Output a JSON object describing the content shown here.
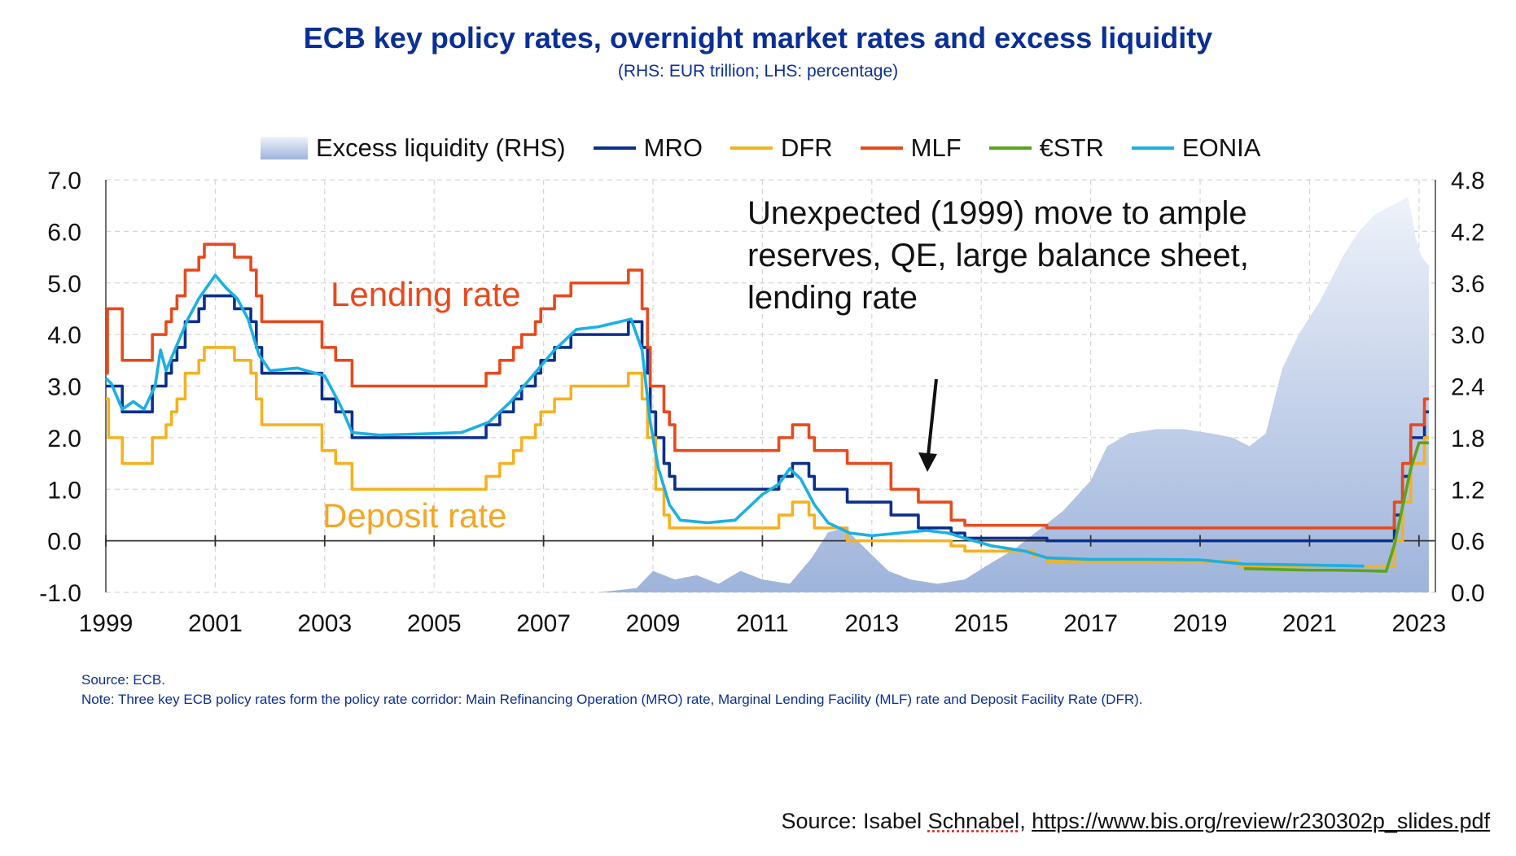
{
  "title": "ECB key policy rates, overnight market rates and excess liquidity",
  "subtitle": "(RHS: EUR trillion; LHS: percentage)",
  "legend": [
    {
      "label": "Excess liquidity (RHS)",
      "kind": "area"
    },
    {
      "label": "MRO",
      "kind": "line",
      "color": "#0b2f8c"
    },
    {
      "label": "DFR",
      "kind": "line",
      "color": "#f5b21e"
    },
    {
      "label": "MLF",
      "kind": "line",
      "color": "#e8491c"
    },
    {
      "label": "€STR",
      "kind": "line",
      "color": "#5aa51c"
    },
    {
      "label": "EONIA",
      "kind": "line",
      "color": "#1ab0e4"
    }
  ],
  "annotations": {
    "lending_rate": "Lending rate",
    "deposit_rate": "Deposit rate",
    "callout_line1": "Unexpected (1999) move to ample",
    "callout_line2": "reserves, QE, large balance sheet,",
    "callout_line3": "lending rate"
  },
  "notes": {
    "source": "Source: ECB.",
    "note": "Note: Three key ECB policy rates form the policy rate corridor: Main Refinancing Operation (MRO) rate, Marginal Lending Facility (MLF) rate and Deposit Facility Rate (DFR)."
  },
  "credit": {
    "prefix": "Source: Isabel ",
    "name": "Schnabel",
    "sep": ", ",
    "url": "https://www.bis.org/review/r230302p_slides.pdf"
  },
  "chart_data": {
    "type": "line",
    "title": "ECB key policy rates, overnight market rates and excess liquidity",
    "x_ticks": [
      "1999",
      "2001",
      "2003",
      "2005",
      "2007",
      "2009",
      "2011",
      "2013",
      "2015",
      "2017",
      "2019",
      "2021",
      "2023"
    ],
    "y_left_ticks": [
      "7.0",
      "6.0",
      "5.0",
      "4.0",
      "3.0",
      "2.0",
      "1.0",
      "0.0",
      "-1.0"
    ],
    "y_right_ticks": [
      "4.8",
      "4.2",
      "3.6",
      "3.0",
      "2.4",
      "1.8",
      "1.2",
      "0.6",
      "0.0"
    ],
    "xlim": [
      1999,
      2023.3
    ],
    "ylim_left": [
      -1.0,
      7.0
    ],
    "ylim_right": [
      0.0,
      4.8
    ],
    "grid": true,
    "series": [
      {
        "name": "MRO",
        "axis": "left",
        "color": "#0b2f8c",
        "step": true,
        "points": [
          [
            1999,
            3.0
          ],
          [
            1999.3,
            2.5
          ],
          [
            1999.85,
            3.0
          ],
          [
            2000.1,
            3.25
          ],
          [
            2000.2,
            3.5
          ],
          [
            2000.3,
            3.75
          ],
          [
            2000.45,
            4.25
          ],
          [
            2000.5,
            4.25
          ],
          [
            2000.7,
            4.5
          ],
          [
            2000.8,
            4.75
          ],
          [
            2001.35,
            4.5
          ],
          [
            2001.65,
            4.25
          ],
          [
            2001.75,
            3.75
          ],
          [
            2001.85,
            3.25
          ],
          [
            2002.95,
            2.75
          ],
          [
            2003.2,
            2.5
          ],
          [
            2003.5,
            2.0
          ],
          [
            2005.95,
            2.25
          ],
          [
            2006.2,
            2.5
          ],
          [
            2006.45,
            2.75
          ],
          [
            2006.6,
            3.0
          ],
          [
            2006.85,
            3.25
          ],
          [
            2006.95,
            3.5
          ],
          [
            2007.2,
            3.75
          ],
          [
            2007.5,
            4.0
          ],
          [
            2008.55,
            4.25
          ],
          [
            2008.8,
            3.75
          ],
          [
            2008.9,
            3.25
          ],
          [
            2008.95,
            2.5
          ],
          [
            2009.05,
            2.0
          ],
          [
            2009.2,
            1.5
          ],
          [
            2009.3,
            1.25
          ],
          [
            2009.4,
            1.0
          ],
          [
            2011.3,
            1.25
          ],
          [
            2011.55,
            1.5
          ],
          [
            2011.85,
            1.25
          ],
          [
            2011.95,
            1.0
          ],
          [
            2012.55,
            0.75
          ],
          [
            2013.35,
            0.5
          ],
          [
            2013.85,
            0.25
          ],
          [
            2014.45,
            0.15
          ],
          [
            2014.7,
            0.05
          ],
          [
            2016.2,
            0.0
          ],
          [
            2022.55,
            0.5
          ],
          [
            2022.7,
            1.25
          ],
          [
            2022.85,
            2.0
          ],
          [
            2023.1,
            2.5
          ],
          [
            2023.18,
            2.5
          ]
        ]
      },
      {
        "name": "DFR",
        "axis": "left",
        "color": "#f5b21e",
        "step": true,
        "points": [
          [
            1999,
            2.75
          ],
          [
            1999.05,
            2.0
          ],
          [
            1999.3,
            1.5
          ],
          [
            1999.85,
            2.0
          ],
          [
            2000.1,
            2.25
          ],
          [
            2000.2,
            2.5
          ],
          [
            2000.3,
            2.75
          ],
          [
            2000.45,
            3.25
          ],
          [
            2000.7,
            3.5
          ],
          [
            2000.8,
            3.75
          ],
          [
            2001.35,
            3.5
          ],
          [
            2001.65,
            3.25
          ],
          [
            2001.75,
            2.75
          ],
          [
            2001.85,
            2.25
          ],
          [
            2002.95,
            1.75
          ],
          [
            2003.2,
            1.5
          ],
          [
            2003.5,
            1.0
          ],
          [
            2005.95,
            1.25
          ],
          [
            2006.2,
            1.5
          ],
          [
            2006.45,
            1.75
          ],
          [
            2006.6,
            2.0
          ],
          [
            2006.85,
            2.25
          ],
          [
            2006.95,
            2.5
          ],
          [
            2007.2,
            2.75
          ],
          [
            2007.5,
            3.0
          ],
          [
            2008.55,
            3.25
          ],
          [
            2008.8,
            2.75
          ],
          [
            2008.9,
            2.0
          ],
          [
            2009.05,
            1.0
          ],
          [
            2009.2,
            0.5
          ],
          [
            2009.3,
            0.25
          ],
          [
            2011.3,
            0.5
          ],
          [
            2011.55,
            0.75
          ],
          [
            2011.85,
            0.5
          ],
          [
            2011.95,
            0.25
          ],
          [
            2012.55,
            0.0
          ],
          [
            2014.45,
            -0.1
          ],
          [
            2014.7,
            -0.2
          ],
          [
            2015.95,
            -0.3
          ],
          [
            2016.2,
            -0.4
          ],
          [
            2019.7,
            -0.5
          ],
          [
            2022.55,
            0.0
          ],
          [
            2022.7,
            0.75
          ],
          [
            2022.85,
            1.5
          ],
          [
            2023.1,
            2.0
          ],
          [
            2023.18,
            2.0
          ]
        ]
      },
      {
        "name": "MLF",
        "axis": "left",
        "color": "#e8491c",
        "step": true,
        "points": [
          [
            1999,
            3.25
          ],
          [
            1999.03,
            4.5
          ],
          [
            1999.3,
            3.5
          ],
          [
            1999.85,
            4.0
          ],
          [
            2000.1,
            4.25
          ],
          [
            2000.2,
            4.5
          ],
          [
            2000.3,
            4.75
          ],
          [
            2000.45,
            5.25
          ],
          [
            2000.7,
            5.5
          ],
          [
            2000.8,
            5.75
          ],
          [
            2001.35,
            5.5
          ],
          [
            2001.65,
            5.25
          ],
          [
            2001.75,
            4.75
          ],
          [
            2001.85,
            4.25
          ],
          [
            2002.95,
            3.75
          ],
          [
            2003.2,
            3.5
          ],
          [
            2003.5,
            3.0
          ],
          [
            2005.95,
            3.25
          ],
          [
            2006.2,
            3.5
          ],
          [
            2006.45,
            3.75
          ],
          [
            2006.6,
            4.0
          ],
          [
            2006.85,
            4.25
          ],
          [
            2006.95,
            4.5
          ],
          [
            2007.2,
            4.75
          ],
          [
            2007.5,
            5.0
          ],
          [
            2008.55,
            5.25
          ],
          [
            2008.8,
            4.5
          ],
          [
            2008.9,
            3.75
          ],
          [
            2008.95,
            3.0
          ],
          [
            2009.2,
            2.5
          ],
          [
            2009.3,
            2.25
          ],
          [
            2009.4,
            1.75
          ],
          [
            2011.3,
            2.0
          ],
          [
            2011.55,
            2.25
          ],
          [
            2011.85,
            2.0
          ],
          [
            2011.95,
            1.75
          ],
          [
            2012.55,
            1.5
          ],
          [
            2013.35,
            1.0
          ],
          [
            2013.85,
            0.75
          ],
          [
            2014.45,
            0.4
          ],
          [
            2014.7,
            0.3
          ],
          [
            2016.2,
            0.25
          ],
          [
            2022.55,
            0.75
          ],
          [
            2022.7,
            1.5
          ],
          [
            2022.85,
            2.25
          ],
          [
            2023.1,
            2.75
          ],
          [
            2023.18,
            2.75
          ]
        ]
      },
      {
        "name": "€STR",
        "axis": "left",
        "color": "#5aa51c",
        "step": false,
        "points": [
          [
            2019.8,
            -0.54
          ],
          [
            2020.2,
            -0.55
          ],
          [
            2020.6,
            -0.56
          ],
          [
            2021.0,
            -0.57
          ],
          [
            2021.5,
            -0.57
          ],
          [
            2022.0,
            -0.58
          ],
          [
            2022.4,
            -0.59
          ],
          [
            2022.55,
            -0.08
          ],
          [
            2022.7,
            0.66
          ],
          [
            2022.85,
            1.4
          ],
          [
            2023.0,
            1.9
          ],
          [
            2023.18,
            1.9
          ]
        ]
      },
      {
        "name": "EONIA",
        "axis": "left",
        "color": "#1ab0e4",
        "step": false,
        "points": [
          [
            1999,
            3.15
          ],
          [
            1999.1,
            3.05
          ],
          [
            1999.3,
            2.55
          ],
          [
            1999.5,
            2.7
          ],
          [
            1999.7,
            2.55
          ],
          [
            1999.9,
            3.0
          ],
          [
            2000.0,
            3.7
          ],
          [
            2000.1,
            3.3
          ],
          [
            2000.3,
            3.8
          ],
          [
            2000.5,
            4.3
          ],
          [
            2000.7,
            4.7
          ],
          [
            2000.9,
            5.0
          ],
          [
            2001.0,
            5.15
          ],
          [
            2001.2,
            4.9
          ],
          [
            2001.4,
            4.7
          ],
          [
            2001.6,
            4.3
          ],
          [
            2001.8,
            3.6
          ],
          [
            2002.0,
            3.3
          ],
          [
            2002.5,
            3.35
          ],
          [
            2003.0,
            3.2
          ],
          [
            2003.3,
            2.6
          ],
          [
            2003.5,
            2.1
          ],
          [
            2004.0,
            2.05
          ],
          [
            2005.0,
            2.08
          ],
          [
            2005.5,
            2.1
          ],
          [
            2006.0,
            2.3
          ],
          [
            2006.4,
            2.7
          ],
          [
            2006.8,
            3.2
          ],
          [
            2007.2,
            3.7
          ],
          [
            2007.6,
            4.1
          ],
          [
            2008.0,
            4.15
          ],
          [
            2008.6,
            4.3
          ],
          [
            2008.8,
            3.7
          ],
          [
            2008.95,
            2.3
          ],
          [
            2009.1,
            1.4
          ],
          [
            2009.3,
            0.7
          ],
          [
            2009.5,
            0.4
          ],
          [
            2010.0,
            0.35
          ],
          [
            2010.5,
            0.4
          ],
          [
            2011.0,
            0.9
          ],
          [
            2011.3,
            1.1
          ],
          [
            2011.5,
            1.4
          ],
          [
            2011.7,
            1.2
          ],
          [
            2011.95,
            0.7
          ],
          [
            2012.2,
            0.35
          ],
          [
            2012.6,
            0.15
          ],
          [
            2013.0,
            0.1
          ],
          [
            2013.5,
            0.15
          ],
          [
            2014.0,
            0.2
          ],
          [
            2014.4,
            0.15
          ],
          [
            2014.7,
            0.05
          ],
          [
            2015.2,
            -0.1
          ],
          [
            2015.8,
            -0.2
          ],
          [
            2016.2,
            -0.33
          ],
          [
            2017.0,
            -0.36
          ],
          [
            2018.0,
            -0.36
          ],
          [
            2019.0,
            -0.37
          ],
          [
            2019.8,
            -0.45
          ],
          [
            2020.5,
            -0.46
          ],
          [
            2021.5,
            -0.48
          ],
          [
            2022.0,
            -0.49
          ]
        ]
      },
      {
        "name": "Excess liquidity (RHS)",
        "axis": "right",
        "kind": "area",
        "step": false,
        "points": [
          [
            1999,
            0.0
          ],
          [
            2008.0,
            0.0
          ],
          [
            2008.7,
            0.05
          ],
          [
            2009.0,
            0.25
          ],
          [
            2009.4,
            0.15
          ],
          [
            2009.8,
            0.2
          ],
          [
            2010.2,
            0.1
          ],
          [
            2010.6,
            0.25
          ],
          [
            2011.0,
            0.15
          ],
          [
            2011.5,
            0.1
          ],
          [
            2011.9,
            0.4
          ],
          [
            2012.2,
            0.7
          ],
          [
            2012.5,
            0.75
          ],
          [
            2012.9,
            0.5
          ],
          [
            2013.3,
            0.25
          ],
          [
            2013.7,
            0.15
          ],
          [
            2014.2,
            0.1
          ],
          [
            2014.7,
            0.15
          ],
          [
            2015.2,
            0.35
          ],
          [
            2015.6,
            0.5
          ],
          [
            2016.0,
            0.7
          ],
          [
            2016.5,
            0.95
          ],
          [
            2017.0,
            1.3
          ],
          [
            2017.3,
            1.7
          ],
          [
            2017.7,
            1.85
          ],
          [
            2018.2,
            1.9
          ],
          [
            2018.7,
            1.9
          ],
          [
            2019.2,
            1.85
          ],
          [
            2019.6,
            1.8
          ],
          [
            2019.9,
            1.7
          ],
          [
            2020.2,
            1.85
          ],
          [
            2020.5,
            2.6
          ],
          [
            2020.8,
            3.0
          ],
          [
            2021.2,
            3.4
          ],
          [
            2021.6,
            3.9
          ],
          [
            2021.9,
            4.2
          ],
          [
            2022.2,
            4.4
          ],
          [
            2022.5,
            4.5
          ],
          [
            2022.8,
            4.6
          ],
          [
            2022.95,
            4.1
          ],
          [
            2023.05,
            3.9
          ],
          [
            2023.18,
            3.8
          ]
        ]
      }
    ]
  }
}
